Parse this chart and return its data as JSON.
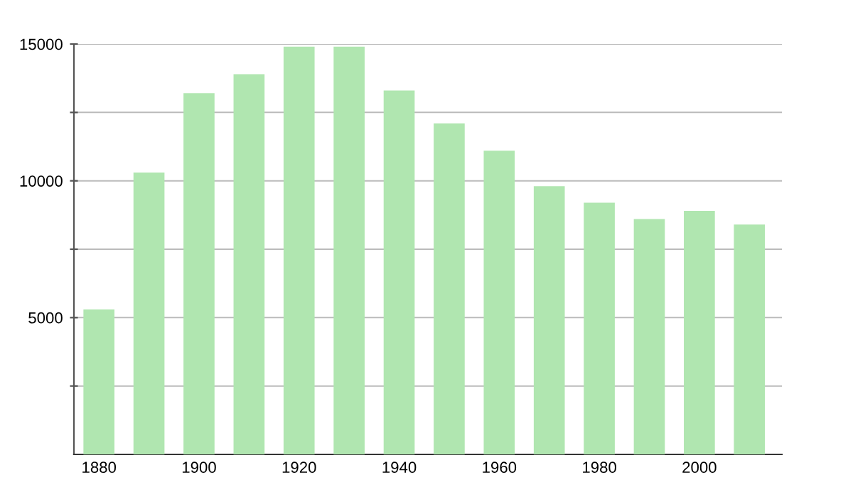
{
  "chart_data": {
    "type": "bar",
    "categories": [
      "1880",
      null,
      "1900",
      null,
      "1920",
      null,
      "1940",
      null,
      "1960",
      null,
      "1980",
      null,
      "2000",
      null
    ],
    "values": [
      5300,
      10300,
      13200,
      13900,
      14900,
      14900,
      13300,
      12100,
      11100,
      9800,
      9200,
      8600,
      8900,
      8400
    ],
    "color": "#b0e6b0",
    "ylim": [
      0,
      15000
    ],
    "yticks": [
      {
        "value": 2500,
        "label": null
      },
      5000,
      {
        "value": 7500,
        "label": null
      },
      10000,
      {
        "value": 12500,
        "label": null
      },
      15000
    ],
    "grid": "y"
  }
}
